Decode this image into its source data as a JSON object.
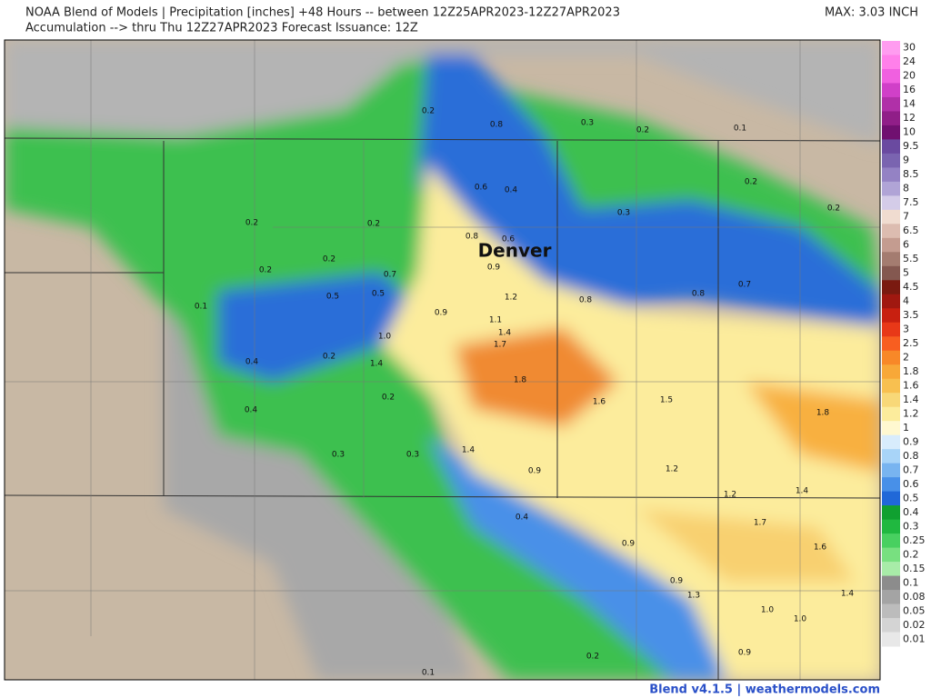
{
  "header": {
    "title": "NOAA Blend of Models | Precipitation [inches] +48 Hours -- between 12Z25APR2023-12Z27APR2023",
    "subtitle": "Accumulation --> thru Thu 12Z27APR2023   Forecast Issuance: 12Z",
    "max": "MAX: 3.03 INCH"
  },
  "map": {
    "city": "Denver",
    "labels": [
      "0.2",
      "0.8",
      "0.3",
      "0.2",
      "0.1",
      "0.6",
      "0.4",
      "0.2",
      "0.3",
      "0.2",
      "0.2",
      "0.2",
      "0.8",
      "0.6",
      "0.9",
      "0.2",
      "0.2",
      "0.7",
      "0.7",
      "0.5",
      "0.5",
      "1.2",
      "0.8",
      "0.8",
      "0.1",
      "0.9",
      "1.1",
      "1.4",
      "1.0",
      "1.7",
      "0.4",
      "0.2",
      "1.4",
      "1.8",
      "0.2",
      "1.6",
      "1.5",
      "1.8",
      "0.4",
      "0.3",
      "0.3",
      "1.4",
      "0.9",
      "1.2",
      "1.4",
      "1.2",
      "0.4",
      "1.7",
      "0.9",
      "1.6",
      "0.9",
      "1.3",
      "1.4",
      "1.0",
      "1.0",
      "0.9",
      "0.2",
      "0.1"
    ]
  },
  "legend": [
    {
      "label": "30",
      "color": "#ff9cf0"
    },
    {
      "label": "24",
      "color": "#ff80ea"
    },
    {
      "label": "20",
      "color": "#f060e0"
    },
    {
      "label": "16",
      "color": "#d040c8"
    },
    {
      "label": "14",
      "color": "#b030a8"
    },
    {
      "label": "12",
      "color": "#901e88"
    },
    {
      "label": "10",
      "color": "#701070"
    },
    {
      "label": "9.5",
      "color": "#6a4aa0"
    },
    {
      "label": "9",
      "color": "#7a64b0"
    },
    {
      "label": "8.5",
      "color": "#9482c4"
    },
    {
      "label": "8",
      "color": "#b0a4d6"
    },
    {
      "label": "7.5",
      "color": "#d4cce8"
    },
    {
      "label": "7",
      "color": "#f0dcd0"
    },
    {
      "label": "6.5",
      "color": "#dcbcb0"
    },
    {
      "label": "6",
      "color": "#c49c90"
    },
    {
      "label": "5.5",
      "color": "#a47c70"
    },
    {
      "label": "5",
      "color": "#845850"
    },
    {
      "label": "4.5",
      "color": "#7a1a10"
    },
    {
      "label": "4",
      "color": "#a01810"
    },
    {
      "label": "3.5",
      "color": "#c82010"
    },
    {
      "label": "3",
      "color": "#e83818"
    },
    {
      "label": "2.5",
      "color": "#f85e20"
    },
    {
      "label": "2",
      "color": "#f88828"
    },
    {
      "label": "1.8",
      "color": "#f8a838"
    },
    {
      "label": "1.6",
      "color": "#f8c050"
    },
    {
      "label": "1.4",
      "color": "#f8d878"
    },
    {
      "label": "1.2",
      "color": "#fcec9c"
    },
    {
      "label": "1",
      "color": "#fff8d0"
    },
    {
      "label": "0.9",
      "color": "#d8ecfc"
    },
    {
      "label": "0.8",
      "color": "#a8d4f8"
    },
    {
      "label": "0.7",
      "color": "#78b4f0"
    },
    {
      "label": "0.6",
      "color": "#4890e8"
    },
    {
      "label": "0.5",
      "color": "#2068d8"
    },
    {
      "label": "0.4",
      "color": "#10a030"
    },
    {
      "label": "0.3",
      "color": "#20b840"
    },
    {
      "label": "0.25",
      "color": "#48d060"
    },
    {
      "label": "0.2",
      "color": "#78e080"
    },
    {
      "label": "0.15",
      "color": "#a8eca8"
    },
    {
      "label": "0.1",
      "color": "#8c8c8c"
    },
    {
      "label": "0.08",
      "color": "#a4a4a4"
    },
    {
      "label": "0.05",
      "color": "#bcbcbc"
    },
    {
      "label": "0.02",
      "color": "#d4d4d4"
    },
    {
      "label": "0.01",
      "color": "#e8e8e8"
    }
  ],
  "footer": "Blend v4.1.5 | weathermodels.com"
}
